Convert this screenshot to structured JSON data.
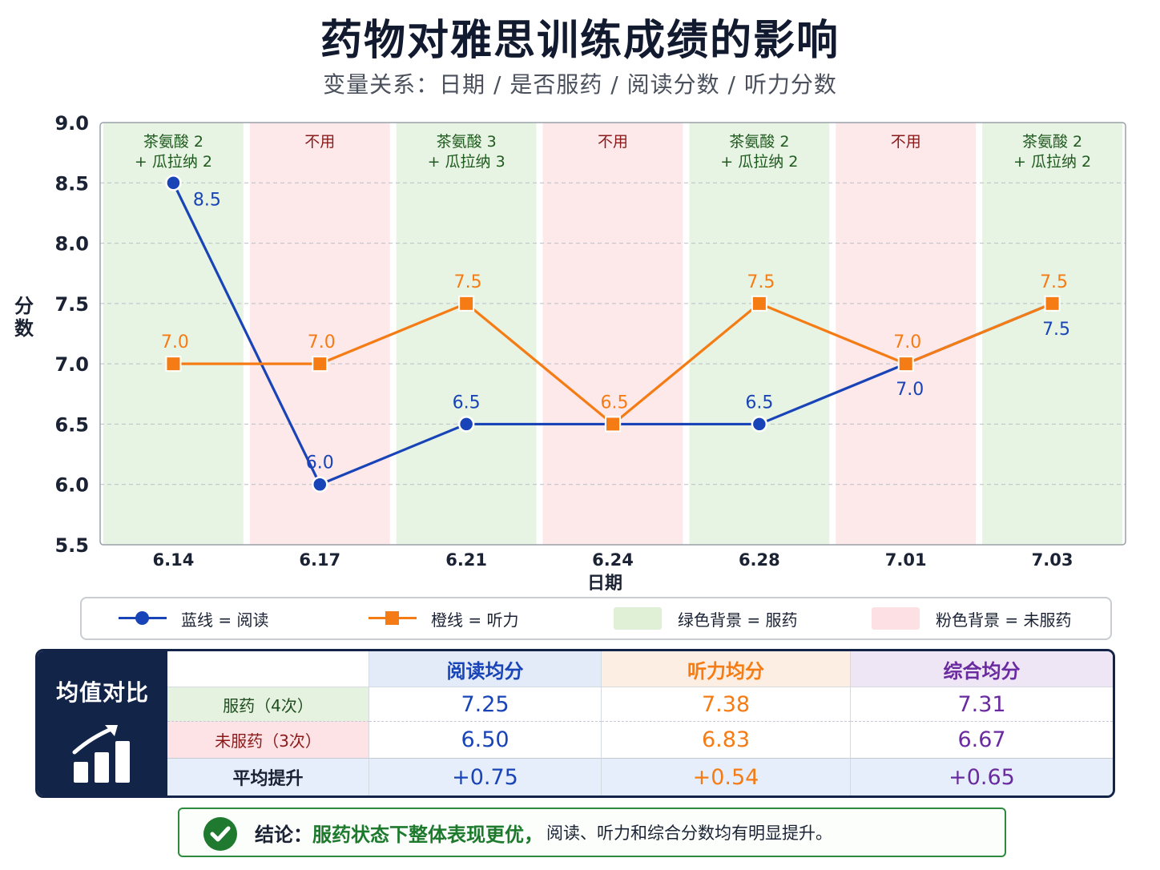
{
  "title": "药物对雅思训练成绩的影响",
  "subtitle": "变量关系：日期 / 是否服药 / 阅读分数 / 听力分数",
  "chart_data": {
    "type": "line",
    "x_labels": [
      "6.14",
      "6.17",
      "6.21",
      "6.24",
      "6.28",
      "7.01",
      "7.03"
    ],
    "xlabel": "日期",
    "ylabel": "分数",
    "ylim": [
      5.5,
      9.0
    ],
    "yticks": [
      "5.5",
      "6.0",
      "6.5",
      "7.0",
      "7.5",
      "8.0",
      "8.5",
      "9.0"
    ],
    "grid": "horizontal dashed",
    "series": [
      {
        "name": "阅读",
        "color": "#1844b8",
        "marker": "circle",
        "values": [
          8.5,
          6.0,
          6.5,
          6.5,
          6.5,
          7.0,
          7.5
        ],
        "labels": [
          "8.5",
          "6.0",
          "6.5",
          "",
          "6.5",
          "7.0",
          "7.5"
        ]
      },
      {
        "name": "听力",
        "color": "#f57c14",
        "marker": "square",
        "values": [
          7.0,
          7.0,
          7.5,
          6.5,
          7.5,
          7.0,
          7.5
        ],
        "labels": [
          "7.0",
          "7.0",
          "7.5",
          "6.5",
          "7.5",
          "7.0",
          "7.5"
        ]
      }
    ],
    "bands": [
      {
        "status": "服药",
        "color": "#e8f4e3",
        "note": [
          "茶氨酸 2",
          "+ 瓜拉纳 2"
        ]
      },
      {
        "status": "未服药",
        "color": "#fde8ea",
        "note": [
          "不用"
        ]
      },
      {
        "status": "服药",
        "color": "#e8f4e3",
        "note": [
          "茶氨酸 3",
          "+ 瓜拉纳 3"
        ]
      },
      {
        "status": "未服药",
        "color": "#fde8ea",
        "note": [
          "不用"
        ]
      },
      {
        "status": "服药",
        "color": "#e8f4e3",
        "note": [
          "茶氨酸 2",
          "+ 瓜拉纳 2"
        ]
      },
      {
        "status": "未服药",
        "color": "#fde8ea",
        "note": [
          "不用"
        ]
      },
      {
        "status": "服药",
        "color": "#e8f4e3",
        "note": [
          "茶氨酸 2",
          "+ 瓜拉纳 2"
        ]
      }
    ],
    "note_colors": {
      "服药": "#1f5a1f",
      "未服药": "#8a1a1a"
    }
  },
  "legend": {
    "blue": "蓝线 = 阅读",
    "orange": "橙线 = 听力",
    "green": "绿色背景 = 服药",
    "pink": "粉色背景 = 未服药"
  },
  "stats": {
    "side_label": "均值对比",
    "headers": [
      "阅读均分",
      "听力均分",
      "综合均分"
    ],
    "rows": [
      {
        "label": "服药（4次）",
        "values": [
          "7.25",
          "7.38",
          "7.31"
        ]
      },
      {
        "label": "未服药（3次）",
        "values": [
          "6.50",
          "6.83",
          "6.67"
        ]
      },
      {
        "label": "平均提升",
        "values": [
          "+0.75",
          "+0.54",
          "+0.65"
        ]
      }
    ],
    "colors": {
      "reading": "#1844b8",
      "listening": "#f57c14",
      "overall": "#6a2aa0"
    }
  },
  "conclusion": {
    "prefix": "结论：",
    "strong": "服药状态下整体表现更优，",
    "rest": "阅读、听力和综合分数均有明显提升。"
  }
}
